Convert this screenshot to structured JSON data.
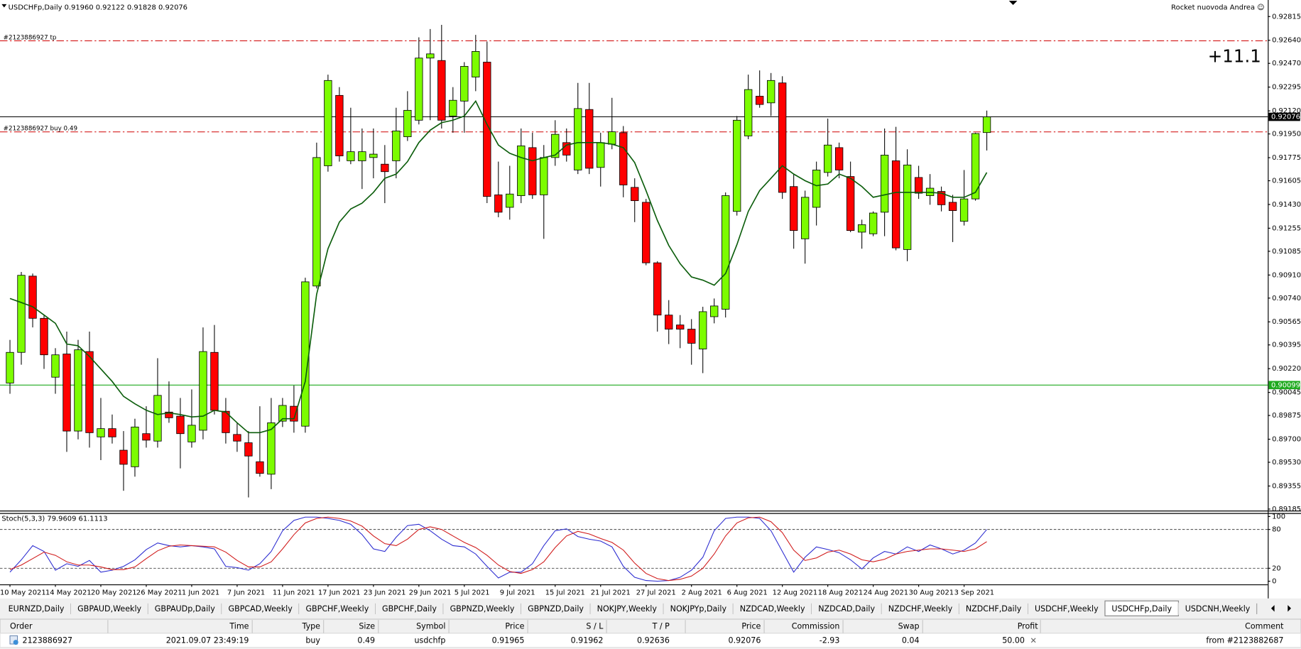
{
  "header": {
    "owner": "Rocket nuovoda Andrea ☺"
  },
  "chart_data": [
    {
      "type": "candlestick",
      "title": "USDCHFp,Daily  0.91960 0.92122 0.91828 0.92076",
      "annotation": "+11.1",
      "ylim": [
        0.89174,
        0.92937
      ],
      "yticks": [
        0.92815,
        {
          "value": 0.9264,
          "label": "0.92640"
        },
        {
          "value": 0.9247,
          "label": "0.92470"
        },
        0.92295,
        {
          "value": 0.9212,
          "label": "0.92120"
        },
        {
          "value": 0.9195,
          "label": "0.91950"
        },
        0.91775,
        0.91605,
        {
          "value": 0.9143,
          "label": "0.91430"
        },
        0.91255,
        0.91085,
        {
          "value": 0.9091,
          "label": "0.90910"
        },
        {
          "value": 0.9074,
          "label": "0.90740"
        },
        0.90565,
        0.90395,
        {
          "value": 0.9022,
          "label": "0.90220"
        },
        0.90045,
        0.89875,
        {
          "value": 0.897,
          "label": "0.89700"
        },
        {
          "value": 0.8953,
          "label": "0.89530"
        },
        0.89355,
        0.89185
      ],
      "categories": [
        "10 May 2021",
        null,
        null,
        null,
        "14 May 2021",
        null,
        null,
        null,
        "20 May 2021",
        null,
        null,
        null,
        "26 May 2021",
        null,
        null,
        null,
        "1 Jun 2021",
        null,
        null,
        null,
        "7 Jun 2021",
        null,
        null,
        null,
        "11 Jun 2021",
        null,
        null,
        null,
        "17 Jun 2021",
        null,
        null,
        null,
        "23 Jun 2021",
        null,
        null,
        null,
        "29 Jun 2021",
        null,
        null,
        null,
        "5 Jul 2021",
        null,
        null,
        null,
        "9 Jul 2021",
        null,
        null,
        null,
        "15 Jul 2021",
        null,
        null,
        null,
        "21 Jul 2021",
        null,
        null,
        null,
        "27 Jul 2021",
        null,
        null,
        null,
        "2 Aug 2021",
        null,
        null,
        null,
        "6 Aug 2021",
        null,
        null,
        null,
        "12 Aug 2021",
        null,
        null,
        null,
        "18 Aug 2021",
        null,
        null,
        null,
        "24 Aug 2021",
        null,
        null,
        null,
        "30 Aug 2021",
        null,
        null,
        null,
        "3 Sep 2021",
        null,
        null
      ],
      "up_color": "#7cfc00",
      "down_color": "#ff0000",
      "open": [
        0.90114,
        0.9034,
        0.90902,
        0.90591,
        0.90157,
        0.90328,
        0.8976,
        0.90346,
        0.89717,
        0.89778,
        0.89619,
        0.89497,
        0.89741,
        0.89686,
        0.899,
        0.8987,
        0.8968,
        0.89766,
        0.9034,
        0.89906,
        0.89735,
        0.89674,
        0.89534,
        0.89442,
        0.89833,
        0.89943,
        0.89796,
        0.90829,
        0.91715,
        0.92234,
        0.91752,
        0.91752,
        0.91776,
        0.91727,
        0.91752,
        0.91929,
        0.92051,
        0.92509,
        0.92491,
        0.92082,
        0.92192,
        0.92369,
        0.92479,
        0.91501,
        0.91409,
        0.91495,
        0.91849,
        0.91501,
        0.91776,
        0.91886,
        0.91684,
        0.9213,
        0.91703,
        0.91874,
        0.91959,
        0.91556,
        0.91446,
        0.91,
        0.90615,
        0.90542,
        0.90511,
        0.90365,
        0.90603,
        0.90658,
        0.91379,
        0.91935,
        0.92228,
        0.92179,
        0.92326,
        0.91562,
        0.91177,
        0.91409,
        0.91666,
        0.91849,
        0.91636,
        0.91226,
        0.91214,
        0.91373,
        0.91752,
        0.91098,
        0.91629,
        0.91495,
        0.91526,
        0.91446,
        0.91306,
        0.91471,
        0.9196
      ],
      "high": [
        0.90432,
        0.90933,
        0.90921,
        0.90615,
        0.90371,
        0.90493,
        0.90432,
        0.90493,
        0.90004,
        0.89882,
        0.8976,
        0.89851,
        0.89943,
        0.90297,
        0.90126,
        0.90004,
        0.90067,
        0.90524,
        0.90542,
        0.90004,
        0.89821,
        0.8976,
        0.89943,
        0.90004,
        0.90004,
        0.90096,
        0.9089,
        0.91886,
        0.92387,
        0.92295,
        0.92143,
        0.9199,
        0.9199,
        0.91868,
        0.92143,
        0.92265,
        0.92662,
        0.92723,
        0.92754,
        0.92295,
        0.92479,
        0.9268,
        0.92631,
        0.91746,
        0.91715,
        0.9199,
        0.91959,
        0.91868,
        0.92051,
        0.9199,
        0.92326,
        0.92326,
        0.91959,
        0.92216,
        0.92008,
        0.91623,
        0.91471,
        0.91012,
        0.90725,
        0.90615,
        0.90585,
        0.90676,
        0.90737,
        0.91519,
        0.92082,
        0.92387,
        0.92418,
        0.92399,
        0.92375,
        0.91654,
        0.91532,
        0.91746,
        0.92063,
        0.91886,
        0.91746,
        0.91318,
        0.91379,
        0.9199,
        0.92002,
        0.91837,
        0.91715,
        0.91654,
        0.91562,
        0.91501,
        0.91684,
        0.91959,
        0.92122
      ],
      "low": [
        0.90035,
        0.90249,
        0.90524,
        0.90218,
        0.90035,
        0.89607,
        0.89699,
        0.89638,
        0.89546,
        0.89668,
        0.8932,
        0.89424,
        0.89638,
        0.89638,
        0.89821,
        0.89485,
        0.89638,
        0.89699,
        0.89882,
        0.89668,
        0.89607,
        0.89271,
        0.89424,
        0.89332,
        0.8979,
        0.89748,
        0.89748,
        0.90811,
        0.91672,
        0.91746,
        0.91727,
        0.91544,
        0.91623,
        0.9144,
        0.91623,
        0.91898,
        0.9202,
        0.92051,
        0.9199,
        0.91959,
        0.91959,
        0.92265,
        0.9144,
        0.91336,
        0.91318,
        0.9144,
        0.91471,
        0.91177,
        0.91715,
        0.91746,
        0.91654,
        0.91654,
        0.91562,
        0.91837,
        0.91483,
        0.913,
        0.90982,
        0.90493,
        0.90401,
        0.90371,
        0.90249,
        0.90187,
        0.90554,
        0.90597,
        0.91348,
        0.91911,
        0.92143,
        0.92082,
        0.91471,
        0.91104,
        0.90994,
        0.91275,
        0.91636,
        0.91623,
        0.91226,
        0.91104,
        0.91196,
        0.91196,
        0.91092,
        0.91012,
        0.91471,
        0.91428,
        0.91379,
        0.91153,
        0.91275,
        0.91458,
        0.91828
      ],
      "close": [
        0.9034,
        0.90908,
        0.90591,
        0.90322,
        0.90322,
        0.8976,
        0.90359,
        0.89748,
        0.89778,
        0.89717,
        0.89515,
        0.8979,
        0.89693,
        0.90023,
        0.89858,
        0.89741,
        0.89803,
        0.90346,
        0.89913,
        0.89748,
        0.89686,
        0.89576,
        0.89448,
        0.89821,
        0.89949,
        0.89833,
        0.9086,
        0.91776,
        0.92344,
        0.91788,
        0.91819,
        0.91819,
        0.91801,
        0.91672,
        0.91972,
        0.92124,
        0.92509,
        0.9254,
        0.92051,
        0.92198,
        0.92448,
        0.92558,
        0.91489,
        0.91373,
        0.91507,
        0.91862,
        0.91501,
        0.91776,
        0.91947,
        0.91794,
        0.92137,
        0.91697,
        0.91886,
        0.91966,
        0.91574,
        0.91458,
        0.91,
        0.90615,
        0.90511,
        0.90511,
        0.90407,
        0.9064,
        0.90682,
        0.91495,
        0.92051,
        0.92277,
        0.92167,
        0.92344,
        0.91519,
        0.91238,
        0.91483,
        0.91684,
        0.91868,
        0.91684,
        0.91238,
        0.91281,
        0.91367,
        0.91794,
        0.9111,
        0.91721,
        0.91513,
        0.9155,
        0.91428,
        0.91385,
        0.91471,
        0.91953,
        0.92076
      ],
      "ma": {
        "color": "#0b5d0b",
        "values": [
          0.90737,
          0.90707,
          0.90676,
          0.90615,
          0.90554,
          0.90401,
          0.90389,
          0.9031,
          0.90218,
          0.90126,
          0.90016,
          0.89961,
          0.89913,
          0.89882,
          0.89894,
          0.89882,
          0.89864,
          0.8987,
          0.89913,
          0.899,
          0.89821,
          0.89748,
          0.89748,
          0.89772,
          0.89851,
          0.89851,
          0.90126,
          0.90768,
          0.91104,
          0.913,
          0.91397,
          0.9144,
          0.91519,
          0.91623,
          0.91654,
          0.91746,
          0.91886,
          0.91978,
          0.92033,
          0.92051,
          0.92082,
          0.92192,
          0.9202,
          0.91868,
          0.91807,
          0.91776,
          0.91752,
          0.91776,
          0.91794,
          0.91868,
          0.91886,
          0.91886,
          0.91886,
          0.91874,
          0.91849,
          0.91739,
          0.91532,
          0.91312,
          0.91128,
          0.90994,
          0.90896,
          0.90872,
          0.90835,
          0.90921,
          0.91135,
          0.91379,
          0.91532,
          0.91623,
          0.91715,
          0.91654,
          0.91605,
          0.91568,
          0.91581,
          0.91654,
          0.91623,
          0.91562,
          0.91483,
          0.91501,
          0.91519,
          0.91519,
          0.91519,
          0.91519,
          0.91513,
          0.91483,
          0.91483,
          0.91519,
          0.91666
        ]
      },
      "order_lines": [
        {
          "label": "#2123886927 tp",
          "value": 0.92636,
          "color": "#d00000"
        },
        {
          "label": "#2123886927 buy 0.49",
          "value": 0.91965,
          "color": "#d00000"
        }
      ],
      "price_markers": [
        {
          "value": 0.92076,
          "color": "#000000"
        },
        {
          "value": 0.90099,
          "color": "#1faa1f"
        }
      ]
    },
    {
      "type": "line",
      "title": "Stoch(5,3,3) 79.9609 61.1113",
      "ylim": [
        -1,
        104
      ],
      "yticks": [
        0,
        20,
        80,
        100
      ],
      "levels": [
        20,
        80
      ],
      "series": [
        {
          "color": "#2a2ad0",
          "values": [
            14,
            33,
            55,
            46,
            17,
            27,
            23,
            32,
            14,
            17,
            23,
            33,
            49,
            59,
            55,
            53,
            55,
            53,
            50,
            23,
            21,
            17,
            27,
            46,
            78,
            94,
            99,
            99,
            97,
            94,
            88,
            72,
            50,
            46,
            68,
            86,
            88,
            78,
            65,
            55,
            53,
            42,
            23,
            5,
            14,
            14,
            27,
            55,
            78,
            81,
            69,
            65,
            62,
            53,
            23,
            6,
            1,
            0,
            1,
            6,
            17,
            37,
            78,
            97,
            99,
            99,
            97,
            78,
            46,
            14,
            37,
            53,
            49,
            44,
            33,
            19,
            36,
            46,
            42,
            53,
            46,
            56,
            50,
            42,
            48,
            59,
            79.9609
          ]
        },
        {
          "color": "#d01818",
          "values": [
            18,
            25,
            35,
            45,
            40,
            30,
            25,
            25,
            22,
            18,
            18,
            22,
            35,
            47,
            54,
            56,
            55,
            54,
            53,
            45,
            32,
            22,
            22,
            30,
            50,
            72,
            90,
            97,
            99,
            97,
            93,
            85,
            70,
            58,
            55,
            65,
            80,
            84,
            80,
            70,
            60,
            52,
            40,
            25,
            15,
            12,
            18,
            30,
            52,
            70,
            77,
            73,
            66,
            60,
            48,
            28,
            12,
            4,
            1,
            3,
            8,
            20,
            42,
            70,
            90,
            98,
            99,
            92,
            75,
            48,
            32,
            36,
            45,
            48,
            42,
            33,
            30,
            34,
            42,
            46,
            48,
            50,
            50,
            48,
            46,
            50,
            61.1113
          ]
        }
      ]
    }
  ],
  "tabs": {
    "active": 15,
    "items": [
      "EURNZD,Daily",
      "GBPAUD,Weekly",
      "GBPAUDp,Daily",
      "GBPCAD,Weekly",
      "GBPCHF,Weekly",
      "GBPCHF,Daily",
      "GBPNZD,Weekly",
      "GBPNZD,Daily",
      "NOKJPY,Weekly",
      "NOKJPYp,Daily",
      "NZDCAD,Weekly",
      "NZDCAD,Daily",
      "NZDCHF,Weekly",
      "NZDCHF,Daily",
      "USDCHF,Weekly",
      "USDCHFp,Daily",
      "USDCNH,Weekly"
    ]
  },
  "table": {
    "header": [
      "Order",
      "Time",
      "Type",
      "Size",
      "Symbol",
      "Price",
      "S / L",
      "T / P",
      "Price",
      "Commission",
      "Swap",
      "Profit",
      "Comment"
    ],
    "rows": [
      [
        "2123886927",
        "2021.09.07 23:49:19",
        "buy",
        "0.49",
        "usdchfp",
        "0.91965",
        "0.91962",
        "0.92636",
        "0.92076",
        "-2.93",
        "0.04",
        "50.00",
        "from #2123882687"
      ]
    ]
  }
}
